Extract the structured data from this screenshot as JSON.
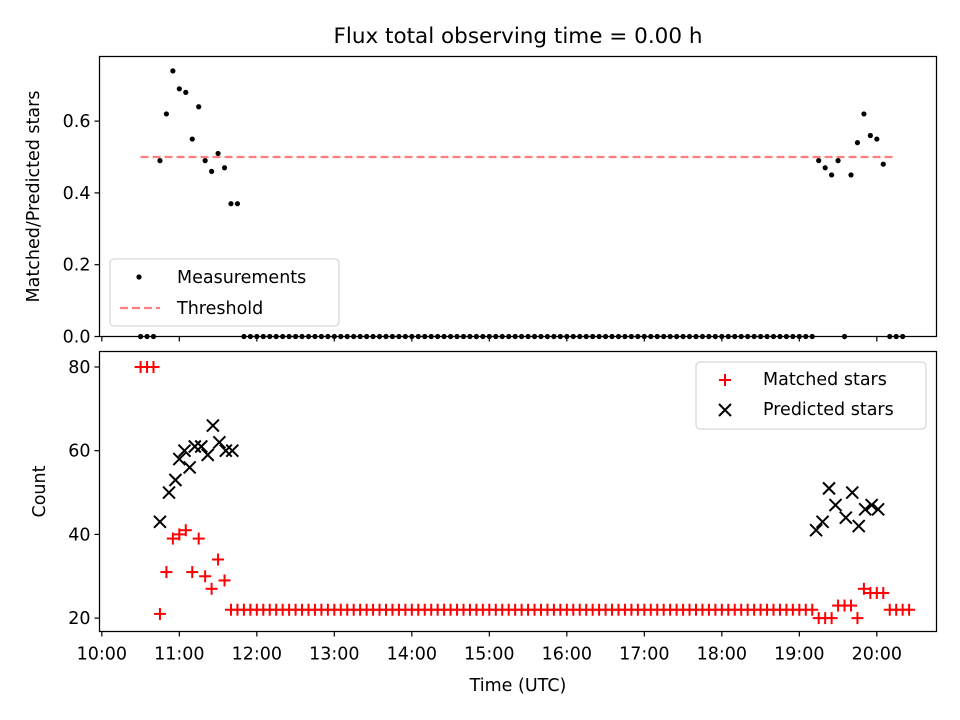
{
  "title": "Flux total observing time = 0.00 h",
  "x_axis": {
    "label": "Time (UTC)",
    "ticks": [
      "10:00",
      "11:00",
      "12:00",
      "13:00",
      "14:00",
      "15:00",
      "16:00",
      "17:00",
      "18:00",
      "19:00",
      "20:00"
    ],
    "range_hours": [
      9.97,
      20.77
    ]
  },
  "colors": {
    "matched": "#ff0000",
    "predicted": "#000000",
    "threshold": "#ff7f7f",
    "measurement": "#000000"
  },
  "chart_data": [
    {
      "type": "scatter",
      "panel": "top",
      "ylabel": "Matched/Predicted stars",
      "ylim": [
        0,
        0.78
      ],
      "yticks": [
        "0.0",
        "0.2",
        "0.4",
        "0.6"
      ],
      "legend": {
        "placement": "lower-left",
        "entries": [
          "Measurements",
          "Threshold"
        ]
      },
      "threshold": {
        "name": "Threshold",
        "value": 0.5,
        "x_range": [
          "10:30",
          "20:15"
        ]
      },
      "series": [
        {
          "name": "Measurements",
          "points": [
            [
              "10:30",
              0.0
            ],
            [
              "10:35",
              0.0
            ],
            [
              "10:40",
              0.0
            ],
            [
              "10:45",
              0.49
            ],
            [
              "10:50",
              0.62
            ],
            [
              "10:55",
              0.74
            ],
            [
              "11:00",
              0.69
            ],
            [
              "11:05",
              0.68
            ],
            [
              "11:10",
              0.55
            ],
            [
              "11:15",
              0.64
            ],
            [
              "11:20",
              0.49
            ],
            [
              "11:25",
              0.46
            ],
            [
              "11:30",
              0.51
            ],
            [
              "11:35",
              0.47
            ],
            [
              "11:40",
              0.37
            ],
            [
              "11:45",
              0.37
            ],
            [
              "11:50",
              0.0
            ],
            [
              "11:55",
              0.0
            ],
            [
              "12:00",
              0.0
            ],
            [
              "12:05",
              0.0
            ],
            [
              "12:10",
              0.0
            ],
            [
              "12:15",
              0.0
            ],
            [
              "12:20",
              0.0
            ],
            [
              "12:25",
              0.0
            ],
            [
              "12:30",
              0.0
            ],
            [
              "12:35",
              0.0
            ],
            [
              "12:40",
              0.0
            ],
            [
              "12:45",
              0.0
            ],
            [
              "12:50",
              0.0
            ],
            [
              "12:55",
              0.0
            ],
            [
              "13:00",
              0.0
            ],
            [
              "13:05",
              0.0
            ],
            [
              "13:10",
              0.0
            ],
            [
              "13:15",
              0.0
            ],
            [
              "13:20",
              0.0
            ],
            [
              "13:25",
              0.0
            ],
            [
              "13:30",
              0.0
            ],
            [
              "13:35",
              0.0
            ],
            [
              "13:40",
              0.0
            ],
            [
              "13:45",
              0.0
            ],
            [
              "13:50",
              0.0
            ],
            [
              "13:55",
              0.0
            ],
            [
              "14:00",
              0.0
            ],
            [
              "14:05",
              0.0
            ],
            [
              "14:10",
              0.0
            ],
            [
              "14:15",
              0.0
            ],
            [
              "14:20",
              0.0
            ],
            [
              "14:25",
              0.0
            ],
            [
              "14:30",
              0.0
            ],
            [
              "14:35",
              0.0
            ],
            [
              "14:40",
              0.0
            ],
            [
              "14:45",
              0.0
            ],
            [
              "14:50",
              0.0
            ],
            [
              "14:55",
              0.0
            ],
            [
              "15:00",
              0.0
            ],
            [
              "15:05",
              0.0
            ],
            [
              "15:10",
              0.0
            ],
            [
              "15:15",
              0.0
            ],
            [
              "15:20",
              0.0
            ],
            [
              "15:25",
              0.0
            ],
            [
              "15:30",
              0.0
            ],
            [
              "15:35",
              0.0
            ],
            [
              "15:40",
              0.0
            ],
            [
              "15:45",
              0.0
            ],
            [
              "15:50",
              0.0
            ],
            [
              "15:55",
              0.0
            ],
            [
              "16:00",
              0.0
            ],
            [
              "16:05",
              0.0
            ],
            [
              "16:10",
              0.0
            ],
            [
              "16:15",
              0.0
            ],
            [
              "16:20",
              0.0
            ],
            [
              "16:25",
              0.0
            ],
            [
              "16:30",
              0.0
            ],
            [
              "16:35",
              0.0
            ],
            [
              "16:40",
              0.0
            ],
            [
              "16:45",
              0.0
            ],
            [
              "16:50",
              0.0
            ],
            [
              "16:55",
              0.0
            ],
            [
              "17:00",
              0.0
            ],
            [
              "17:05",
              0.0
            ],
            [
              "17:10",
              0.0
            ],
            [
              "17:15",
              0.0
            ],
            [
              "17:20",
              0.0
            ],
            [
              "17:25",
              0.0
            ],
            [
              "17:30",
              0.0
            ],
            [
              "17:35",
              0.0
            ],
            [
              "17:40",
              0.0
            ],
            [
              "17:45",
              0.0
            ],
            [
              "17:50",
              0.0
            ],
            [
              "17:55",
              0.0
            ],
            [
              "18:00",
              0.0
            ],
            [
              "18:05",
              0.0
            ],
            [
              "18:10",
              0.0
            ],
            [
              "18:15",
              0.0
            ],
            [
              "18:20",
              0.0
            ],
            [
              "18:25",
              0.0
            ],
            [
              "18:30",
              0.0
            ],
            [
              "18:35",
              0.0
            ],
            [
              "18:40",
              0.0
            ],
            [
              "18:45",
              0.0
            ],
            [
              "18:50",
              0.0
            ],
            [
              "18:55",
              0.0
            ],
            [
              "19:00",
              0.0
            ],
            [
              "19:05",
              0.0
            ],
            [
              "19:10",
              0.0
            ],
            [
              "19:15",
              0.49
            ],
            [
              "19:20",
              0.47
            ],
            [
              "19:25",
              0.45
            ],
            [
              "19:30",
              0.49
            ],
            [
              "19:35",
              0.0
            ],
            [
              "19:40",
              0.45
            ],
            [
              "19:45",
              0.54
            ],
            [
              "19:50",
              0.62
            ],
            [
              "19:55",
              0.56
            ],
            [
              "20:00",
              0.55
            ],
            [
              "20:05",
              0.48
            ],
            [
              "20:10",
              0.0
            ],
            [
              "20:15",
              0.0
            ],
            [
              "20:20",
              0.0
            ]
          ]
        }
      ]
    },
    {
      "type": "scatter",
      "panel": "bottom",
      "ylabel": "Count",
      "ylim": [
        16.8,
        83.7
      ],
      "yticks": [
        "20",
        "40",
        "60",
        "80"
      ],
      "legend": {
        "placement": "top-right",
        "entries": [
          "Matched stars",
          "Predicted stars"
        ]
      },
      "series": [
        {
          "name": "Matched stars",
          "marker": "+",
          "points": [
            [
              "10:30",
              80
            ],
            [
              "10:35",
              80
            ],
            [
              "10:40",
              80
            ],
            [
              "10:45",
              21
            ],
            [
              "10:50",
              31
            ],
            [
              "10:55",
              39
            ],
            [
              "11:00",
              40
            ],
            [
              "11:05",
              41
            ],
            [
              "11:10",
              31
            ],
            [
              "11:15",
              39
            ],
            [
              "11:20",
              30
            ],
            [
              "11:25",
              27
            ],
            [
              "11:30",
              34
            ],
            [
              "11:35",
              29
            ],
            [
              "11:40",
              22
            ],
            [
              "11:45",
              22
            ],
            [
              "11:50",
              22
            ],
            [
              "11:55",
              22
            ],
            [
              "12:00",
              22
            ],
            [
              "12:05",
              22
            ],
            [
              "12:10",
              22
            ],
            [
              "12:15",
              22
            ],
            [
              "12:20",
              22
            ],
            [
              "12:25",
              22
            ],
            [
              "12:30",
              22
            ],
            [
              "12:35",
              22
            ],
            [
              "12:40",
              22
            ],
            [
              "12:45",
              22
            ],
            [
              "12:50",
              22
            ],
            [
              "12:55",
              22
            ],
            [
              "13:00",
              22
            ],
            [
              "13:05",
              22
            ],
            [
              "13:10",
              22
            ],
            [
              "13:15",
              22
            ],
            [
              "13:20",
              22
            ],
            [
              "13:25",
              22
            ],
            [
              "13:30",
              22
            ],
            [
              "13:35",
              22
            ],
            [
              "13:40",
              22
            ],
            [
              "13:45",
              22
            ],
            [
              "13:50",
              22
            ],
            [
              "13:55",
              22
            ],
            [
              "14:00",
              22
            ],
            [
              "14:05",
              22
            ],
            [
              "14:10",
              22
            ],
            [
              "14:15",
              22
            ],
            [
              "14:20",
              22
            ],
            [
              "14:25",
              22
            ],
            [
              "14:30",
              22
            ],
            [
              "14:35",
              22
            ],
            [
              "14:40",
              22
            ],
            [
              "14:45",
              22
            ],
            [
              "14:50",
              22
            ],
            [
              "14:55",
              22
            ],
            [
              "15:00",
              22
            ],
            [
              "15:05",
              22
            ],
            [
              "15:10",
              22
            ],
            [
              "15:15",
              22
            ],
            [
              "15:20",
              22
            ],
            [
              "15:25",
              22
            ],
            [
              "15:30",
              22
            ],
            [
              "15:35",
              22
            ],
            [
              "15:40",
              22
            ],
            [
              "15:45",
              22
            ],
            [
              "15:50",
              22
            ],
            [
              "15:55",
              22
            ],
            [
              "16:00",
              22
            ],
            [
              "16:05",
              22
            ],
            [
              "16:10",
              22
            ],
            [
              "16:15",
              22
            ],
            [
              "16:20",
              22
            ],
            [
              "16:25",
              22
            ],
            [
              "16:30",
              22
            ],
            [
              "16:35",
              22
            ],
            [
              "16:40",
              22
            ],
            [
              "16:45",
              22
            ],
            [
              "16:50",
              22
            ],
            [
              "16:55",
              22
            ],
            [
              "17:00",
              22
            ],
            [
              "17:05",
              22
            ],
            [
              "17:10",
              22
            ],
            [
              "17:15",
              22
            ],
            [
              "17:20",
              22
            ],
            [
              "17:25",
              22
            ],
            [
              "17:30",
              22
            ],
            [
              "17:35",
              22
            ],
            [
              "17:40",
              22
            ],
            [
              "17:45",
              22
            ],
            [
              "17:50",
              22
            ],
            [
              "17:55",
              22
            ],
            [
              "18:00",
              22
            ],
            [
              "18:05",
              22
            ],
            [
              "18:10",
              22
            ],
            [
              "18:15",
              22
            ],
            [
              "18:20",
              22
            ],
            [
              "18:25",
              22
            ],
            [
              "18:30",
              22
            ],
            [
              "18:35",
              22
            ],
            [
              "18:40",
              22
            ],
            [
              "18:45",
              22
            ],
            [
              "18:50",
              22
            ],
            [
              "18:55",
              22
            ],
            [
              "19:00",
              22
            ],
            [
              "19:05",
              22
            ],
            [
              "19:10",
              22
            ],
            [
              "19:15",
              20
            ],
            [
              "19:20",
              20
            ],
            [
              "19:25",
              20
            ],
            [
              "19:30",
              23
            ],
            [
              "19:35",
              23
            ],
            [
              "19:40",
              23
            ],
            [
              "19:45",
              20
            ],
            [
              "19:50",
              27
            ],
            [
              "19:55",
              26
            ],
            [
              "20:00",
              26
            ],
            [
              "20:05",
              26
            ],
            [
              "20:10",
              22
            ],
            [
              "20:15",
              22
            ],
            [
              "20:20",
              22
            ],
            [
              "20:25",
              22
            ]
          ]
        },
        {
          "name": "Predicted stars",
          "marker": "x",
          "points": [
            [
              "10:45",
              43
            ],
            [
              "10:52",
              50
            ],
            [
              "10:57",
              53
            ],
            [
              "11:00",
              58
            ],
            [
              "11:04",
              60
            ],
            [
              "11:08",
              56
            ],
            [
              "11:12",
              61
            ],
            [
              "11:17",
              61
            ],
            [
              "11:22",
              59
            ],
            [
              "11:26",
              66
            ],
            [
              "11:31",
              62
            ],
            [
              "11:36",
              60
            ],
            [
              "11:41",
              60
            ],
            [
              "19:13",
              41
            ],
            [
              "19:18",
              43
            ],
            [
              "19:23",
              51
            ],
            [
              "19:28",
              47
            ],
            [
              "19:36",
              44
            ],
            [
              "19:41",
              50
            ],
            [
              "19:46",
              42
            ],
            [
              "19:51",
              46
            ],
            [
              "19:56",
              47
            ],
            [
              "20:01",
              46
            ]
          ]
        }
      ]
    }
  ]
}
